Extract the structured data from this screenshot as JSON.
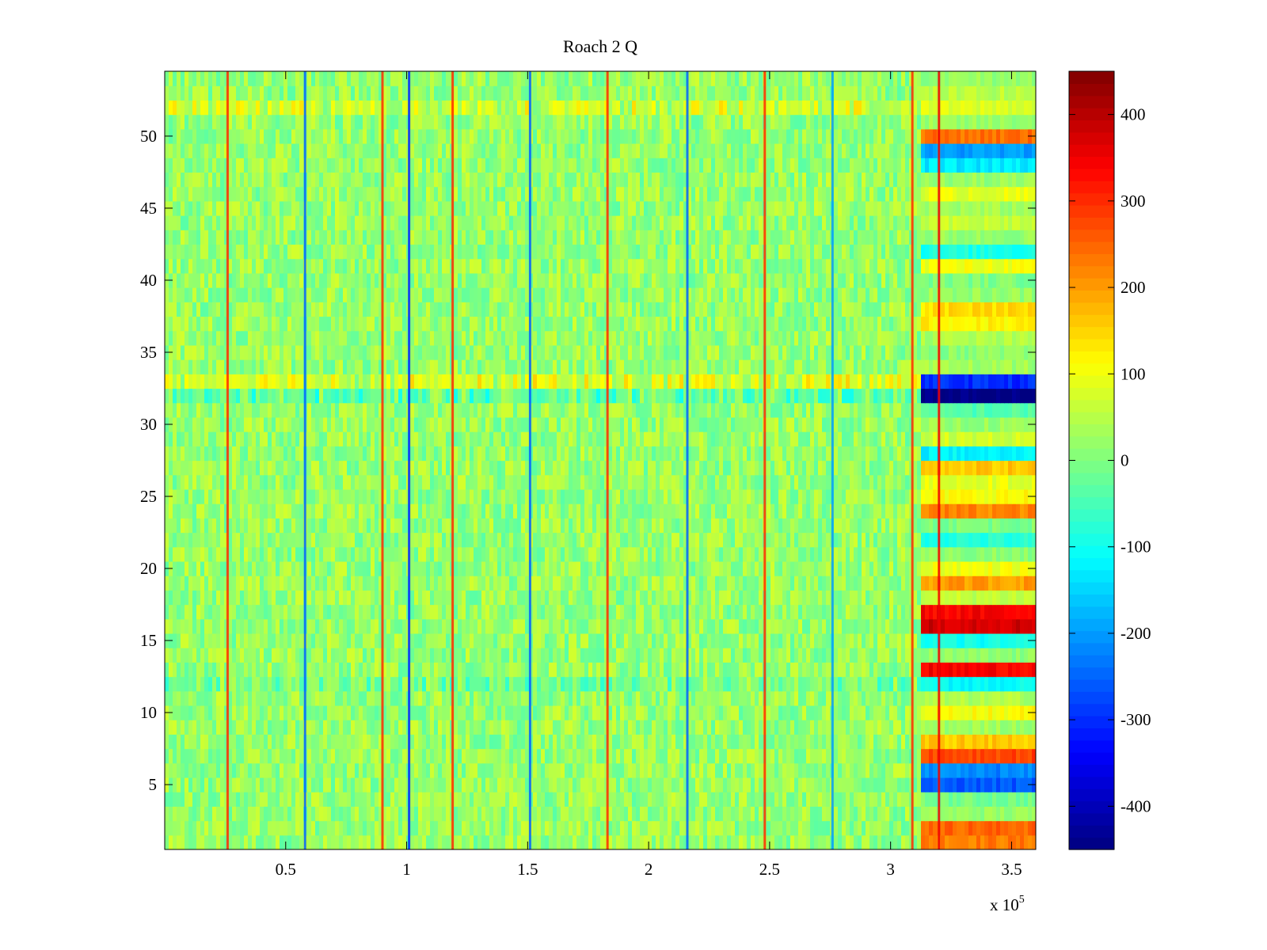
{
  "chart_data": {
    "type": "heatmap",
    "title": "Roach 2 Q",
    "xlabel": "",
    "ylabel": "",
    "x_exponent_label": "x 10",
    "x_exponent_power": "5",
    "xlim": [
      0,
      360000
    ],
    "ylim": [
      0.5,
      54.5
    ],
    "n_rows": 54,
    "x_ticks": [
      0.5,
      1,
      1.5,
      2,
      2.5,
      3,
      3.5
    ],
    "x_tick_labels": [
      "0.5",
      "1",
      "1.5",
      "2",
      "2.5",
      "3",
      "3.5"
    ],
    "y_ticks": [
      5,
      10,
      15,
      20,
      25,
      30,
      35,
      40,
      45,
      50
    ],
    "y_tick_labels": [
      "5",
      "10",
      "15",
      "20",
      "25",
      "30",
      "35",
      "40",
      "45",
      "50"
    ],
    "colorbar": {
      "colormap": "jet",
      "range": [
        -450,
        450
      ],
      "ticks": [
        -400,
        -300,
        -200,
        -100,
        0,
        100,
        200,
        300,
        400
      ],
      "tick_labels": [
        "-400",
        "-300",
        "-200",
        "-100",
        "0",
        "100",
        "200",
        "300",
        "400"
      ]
    },
    "background_value": 20,
    "spike_lines": [
      {
        "x": 26000,
        "value": 300
      },
      {
        "x": 58000,
        "value": -250
      },
      {
        "x": 90000,
        "value": 300
      },
      {
        "x": 101000,
        "value": -300
      },
      {
        "x": 119000,
        "value": 300
      },
      {
        "x": 151000,
        "value": -250
      },
      {
        "x": 183000,
        "value": 300
      },
      {
        "x": 216000,
        "value": -250
      },
      {
        "x": 248000,
        "value": 300
      },
      {
        "x": 276000,
        "value": -200
      },
      {
        "x": 309000,
        "value": 300
      },
      {
        "x": 320000,
        "value": 350
      }
    ],
    "regime_change_x": 312000,
    "regime_rows": [
      {
        "row": 1,
        "value": 230
      },
      {
        "row": 2,
        "value": 250
      },
      {
        "row": 3,
        "value": 20
      },
      {
        "row": 4,
        "value": -10
      },
      {
        "row": 5,
        "value": -260
      },
      {
        "row": 6,
        "value": -220
      },
      {
        "row": 7,
        "value": 280
      },
      {
        "row": 8,
        "value": 160
      },
      {
        "row": 9,
        "value": 30
      },
      {
        "row": 10,
        "value": 110
      },
      {
        "row": 11,
        "value": 40
      },
      {
        "row": 12,
        "value": -110
      },
      {
        "row": 13,
        "value": 340
      },
      {
        "row": 14,
        "value": 10
      },
      {
        "row": 15,
        "value": -100
      },
      {
        "row": 16,
        "value": 380
      },
      {
        "row": 17,
        "value": 340
      },
      {
        "row": 18,
        "value": 60
      },
      {
        "row": 19,
        "value": 200
      },
      {
        "row": 20,
        "value": 100
      },
      {
        "row": 21,
        "value": 10
      },
      {
        "row": 22,
        "value": -80
      },
      {
        "row": 23,
        "value": 0
      },
      {
        "row": 24,
        "value": 220
      },
      {
        "row": 25,
        "value": 110
      },
      {
        "row": 26,
        "value": 90
      },
      {
        "row": 27,
        "value": 160
      },
      {
        "row": 28,
        "value": -120
      },
      {
        "row": 29,
        "value": 70
      },
      {
        "row": 30,
        "value": 20
      },
      {
        "row": 31,
        "value": -40
      },
      {
        "row": 32,
        "value": -450
      },
      {
        "row": 33,
        "value": -300
      },
      {
        "row": 34,
        "value": 30
      },
      {
        "row": 35,
        "value": 10
      },
      {
        "row": 36,
        "value": 40
      },
      {
        "row": 37,
        "value": 120
      },
      {
        "row": 38,
        "value": 140
      },
      {
        "row": 39,
        "value": 20
      },
      {
        "row": 40,
        "value": 0
      },
      {
        "row": 41,
        "value": 100
      },
      {
        "row": 42,
        "value": -90
      },
      {
        "row": 43,
        "value": 20
      },
      {
        "row": 44,
        "value": 60
      },
      {
        "row": 45,
        "value": 30
      },
      {
        "row": 46,
        "value": 90
      },
      {
        "row": 47,
        "value": 20
      },
      {
        "row": 48,
        "value": -130
      },
      {
        "row": 49,
        "value": -200
      },
      {
        "row": 50,
        "value": 240
      },
      {
        "row": 51,
        "value": 20
      },
      {
        "row": 52,
        "value": 80
      },
      {
        "row": 53,
        "value": 50
      },
      {
        "row": 54,
        "value": 20
      }
    ],
    "row_offsets_before_change": [
      {
        "row": 32,
        "value": -70
      },
      {
        "row": 33,
        "value": 80
      },
      {
        "row": 52,
        "value": 70
      },
      {
        "row": 12,
        "value": -40
      }
    ]
  }
}
